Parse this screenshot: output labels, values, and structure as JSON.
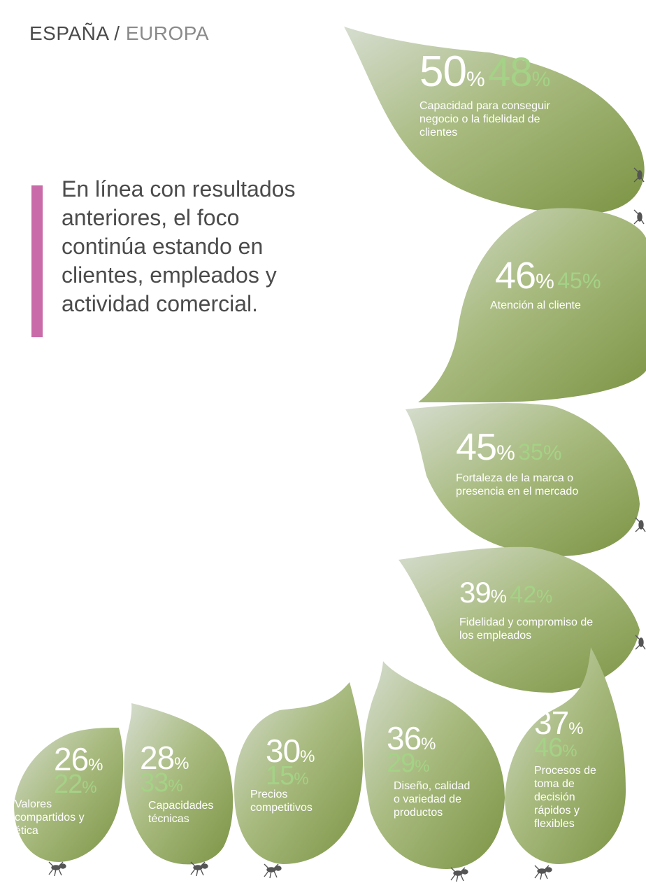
{
  "header": {
    "spain": "ESPAÑA",
    "sep": " / ",
    "europe": "EUROPA"
  },
  "quote": "En línea con resultados anteriores, el foco continúa estando en clientes, empleados y actividad comercial.",
  "colors": {
    "leaf_light": "#d6ddd0",
    "leaf_mid": "#a9bb80",
    "leaf_dark": "#7c9444",
    "accent_bar": "#c86ba8",
    "europe_value": "#a4d286"
  },
  "pct_symbol": "%",
  "factors": [
    {
      "spain": "50",
      "europe": "48",
      "label": "Capacidad para conseguir negocio o la fidelidad de clientes"
    },
    {
      "spain": "46",
      "europe": "45",
      "label": "Atención al cliente"
    },
    {
      "spain": "45",
      "europe": "35",
      "label": "Fortaleza de la marca o presencia en el mercado"
    },
    {
      "spain": "39",
      "europe": "42",
      "label": "Fidelidad y compromiso de los empleados"
    },
    {
      "spain": "37",
      "europe": "46",
      "label": "Procesos de toma de decisión rápidos y flexibles"
    },
    {
      "spain": "36",
      "europe": "29",
      "label": "Diseño, calidad o variedad de productos"
    },
    {
      "spain": "30",
      "europe": "15",
      "label": "Precios competitivos"
    },
    {
      "spain": "28",
      "europe": "33",
      "label": "Capacidades técnicas"
    },
    {
      "spain": "26",
      "europe": "22",
      "label": "Valores compartidos y ética"
    }
  ]
}
